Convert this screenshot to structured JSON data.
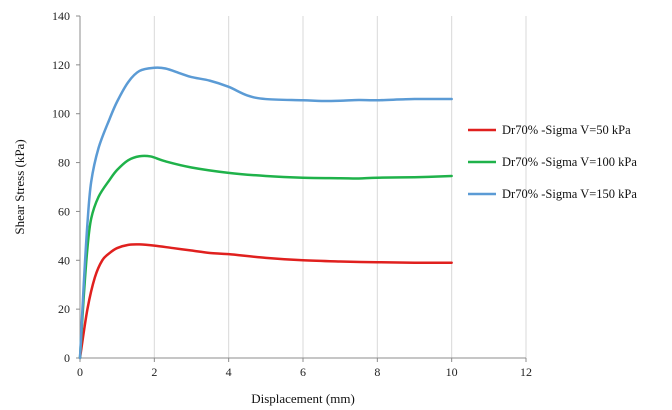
{
  "chart_data": {
    "type": "line",
    "title": "",
    "xlabel": "Displacement (mm)",
    "ylabel": "Shear Stress (kPa)",
    "xlim": [
      0,
      12
    ],
    "ylim": [
      0,
      140
    ],
    "x_ticks": [
      "0",
      "2",
      "4",
      "6",
      "8",
      "10",
      "12"
    ],
    "y_ticks": [
      "0",
      "20",
      "40",
      "60",
      "80",
      "100",
      "120",
      "140"
    ],
    "grid": "vertical",
    "legend_position": "right",
    "series": [
      {
        "name": "Dr70% -Sigma V=50 kPa",
        "color": "#e0201e",
        "points": [
          [
            0,
            0
          ],
          [
            0.2,
            20
          ],
          [
            0.4,
            33
          ],
          [
            0.6,
            40
          ],
          [
            0.8,
            43
          ],
          [
            1.0,
            45
          ],
          [
            1.3,
            46.3
          ],
          [
            1.6,
            46.5
          ],
          [
            2.0,
            46
          ],
          [
            2.5,
            45
          ],
          [
            3.0,
            44
          ],
          [
            3.5,
            43
          ],
          [
            4.0,
            42.5
          ],
          [
            5.0,
            41
          ],
          [
            6.0,
            40
          ],
          [
            7.0,
            39.5
          ],
          [
            8.0,
            39.2
          ],
          [
            9.0,
            39
          ],
          [
            10.0,
            39
          ]
        ]
      },
      {
        "name": "Dr70% -Sigma V=100 kPa",
        "color": "#1fb24a",
        "points": [
          [
            0,
            0
          ],
          [
            0.1,
            25
          ],
          [
            0.2,
            45
          ],
          [
            0.3,
            57
          ],
          [
            0.5,
            66
          ],
          [
            0.8,
            73
          ],
          [
            1.0,
            77
          ],
          [
            1.3,
            81
          ],
          [
            1.6,
            82.6
          ],
          [
            1.9,
            82.5
          ],
          [
            2.3,
            80.5
          ],
          [
            3.0,
            78
          ],
          [
            4.0,
            75.8
          ],
          [
            5.0,
            74.5
          ],
          [
            6.0,
            73.8
          ],
          [
            7.0,
            73.6
          ],
          [
            7.5,
            73.5
          ],
          [
            8.0,
            73.8
          ],
          [
            9.0,
            74
          ],
          [
            10.0,
            74.5
          ]
        ]
      },
      {
        "name": "Dr70% -Sigma V=150 kPa",
        "color": "#5b9bd5",
        "points": [
          [
            0,
            0
          ],
          [
            0.1,
            30
          ],
          [
            0.2,
            55
          ],
          [
            0.3,
            72
          ],
          [
            0.5,
            86
          ],
          [
            0.8,
            98
          ],
          [
            1.0,
            105
          ],
          [
            1.3,
            113
          ],
          [
            1.6,
            117.5
          ],
          [
            2.0,
            118.8
          ],
          [
            2.3,
            118.5
          ],
          [
            2.7,
            116.5
          ],
          [
            3.0,
            115
          ],
          [
            3.5,
            113.5
          ],
          [
            4.0,
            111
          ],
          [
            4.5,
            107.5
          ],
          [
            5.0,
            106
          ],
          [
            6.0,
            105.5
          ],
          [
            6.5,
            105.2
          ],
          [
            7.0,
            105.3
          ],
          [
            7.5,
            105.6
          ],
          [
            8.0,
            105.5
          ],
          [
            9.0,
            106
          ],
          [
            10.0,
            106
          ]
        ]
      }
    ]
  }
}
